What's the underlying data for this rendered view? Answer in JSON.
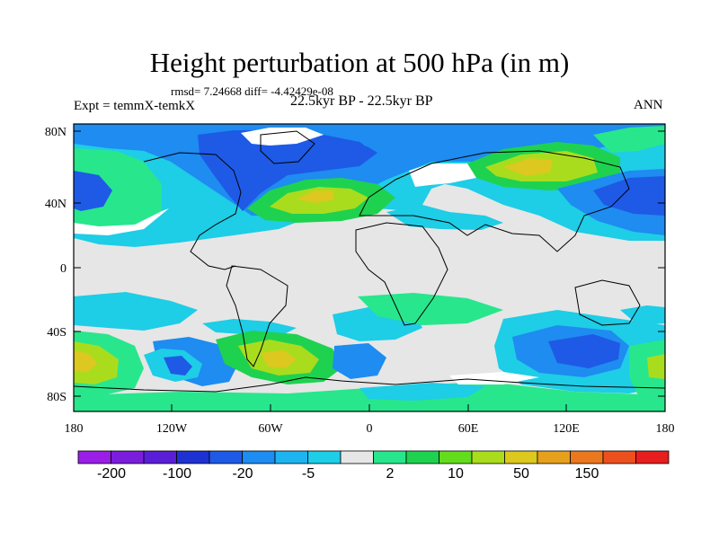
{
  "title": "Height perturbation at 500 hPa (in m)",
  "stats": "rmsd= 7.24668 diff= -4.42429e-08",
  "experiment": "Expt = temmX-temkX",
  "period": "22.5kyr BP - 22.5kyr BP",
  "season": "ANN",
  "y_axis_labels": [
    "80N",
    "40N",
    "0",
    "40S",
    "80S"
  ],
  "x_axis_labels": [
    "180",
    "120W",
    "60W",
    "0",
    "60E",
    "120E",
    "180"
  ],
  "colorbar": {
    "colors": [
      "#9A1EE6",
      "#7A1EDC",
      "#5A1ED6",
      "#1E32D2",
      "#1E5AE6",
      "#1E8CF0",
      "#1EB4F0",
      "#1ECDE6",
      "#E6E6E6",
      "#28E68C",
      "#1ED250",
      "#64DC1E",
      "#AADC1E",
      "#DCC81E",
      "#E6A01E",
      "#EB781E",
      "#EB501E",
      "#E61E1E"
    ],
    "labels": [
      "-200",
      "-100",
      "-20",
      "-5",
      "2",
      "10",
      "50",
      "150"
    ]
  },
  "field_colors": {
    "ocean_neutral": "#E6E6E6",
    "light_blue": "#1ECDE6",
    "mid_blue": "#1E8CF0",
    "dark_blue": "#1E5AE6",
    "light_green": "#28E68C",
    "green": "#1ED250",
    "yellow_green": "#AADC1E",
    "yellow": "#DCC81E",
    "orange": "#E6A01E",
    "white": "#FFFFFF"
  }
}
